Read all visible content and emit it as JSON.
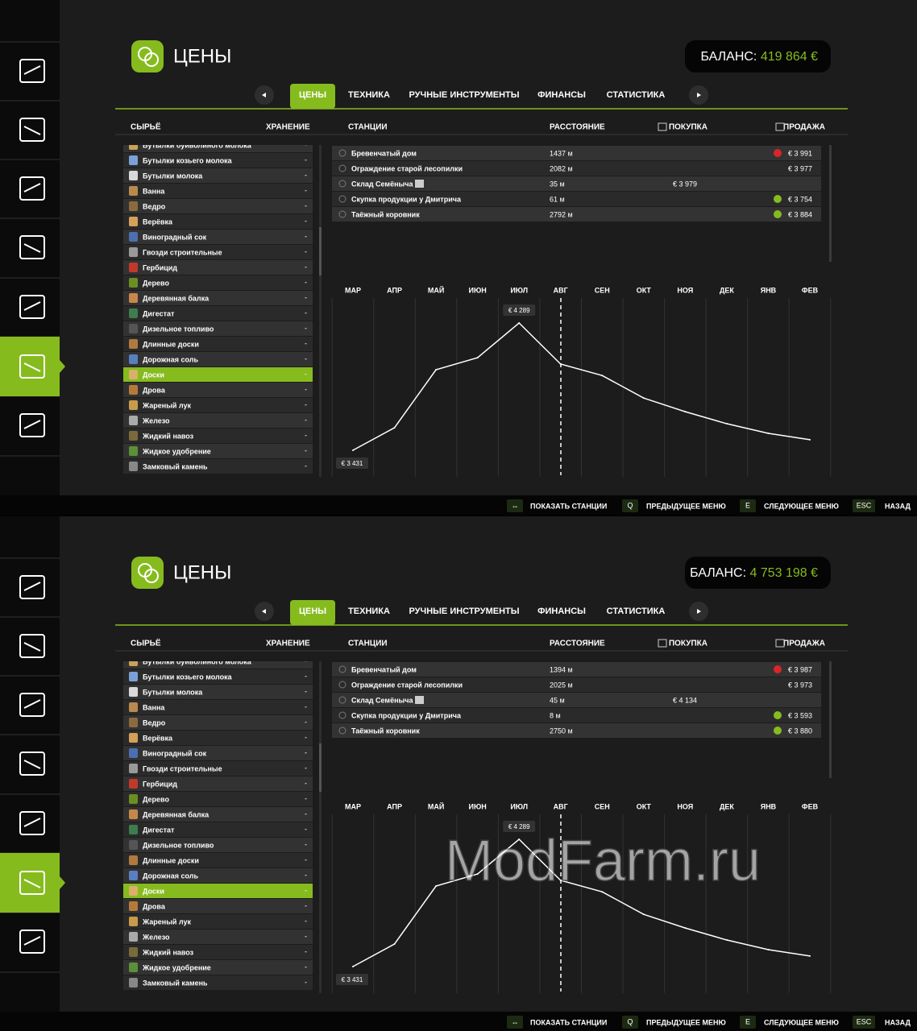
{
  "screens": [
    {
      "title": "ЦЕНЫ",
      "balance_label": "БАЛАНС:",
      "balance": "419 864 €",
      "tabs": [
        "ЦЕНЫ",
        "ТЕХНИКА",
        "РУЧНЫЕ ИНСТРУМЕНТЫ",
        "ФИНАНСЫ",
        "СТАТИСТИКА"
      ],
      "columns": {
        "goods": "СЫРЬЁ",
        "storage": "ХРАНЕНИЕ",
        "stations": "СТАНЦИИ",
        "distance": "РАССТОЯНИЕ",
        "buy": "ПОКУПКА",
        "sell": "ПРОДАЖА"
      },
      "items": [
        {
          "name": "Бутылки буйволиного молока",
          "storage": "-"
        },
        {
          "name": "Бутылки козьего молока",
          "storage": "-"
        },
        {
          "name": "Бутылки молока",
          "storage": "-"
        },
        {
          "name": "Ванна",
          "storage": "-"
        },
        {
          "name": "Ведро",
          "storage": "-"
        },
        {
          "name": "Верёвка",
          "storage": "-"
        },
        {
          "name": "Виноградный сок",
          "storage": "-"
        },
        {
          "name": "Гвозди строительные",
          "storage": "-"
        },
        {
          "name": "Гербицид",
          "storage": "-"
        },
        {
          "name": "Дерево",
          "storage": "-"
        },
        {
          "name": "Деревянная балка",
          "storage": "-"
        },
        {
          "name": "Дигестат",
          "storage": "-"
        },
        {
          "name": "Дизельное топливо",
          "storage": "-"
        },
        {
          "name": "Длинные доски",
          "storage": "-"
        },
        {
          "name": "Дорожная соль",
          "storage": "-"
        },
        {
          "name": "Доски",
          "storage": "-",
          "selected": true
        },
        {
          "name": "Дрова",
          "storage": "-"
        },
        {
          "name": "Жареный лук",
          "storage": "-"
        },
        {
          "name": "Железо",
          "storage": "-"
        },
        {
          "name": "Жидкий навоз",
          "storage": "-"
        },
        {
          "name": "Жидкое удобрение",
          "storage": "-"
        },
        {
          "name": "Замковый камень",
          "storage": "-"
        }
      ],
      "stations": [
        {
          "name": "Бревенчатый дом",
          "distance": "1437 м",
          "buy": null,
          "sell": "€ 3 991",
          "marker": "red"
        },
        {
          "name": "Ограждение старой лесопилки",
          "distance": "2082 м",
          "buy": null,
          "sell": "€ 3 977",
          "marker": null
        },
        {
          "name": "Склад Семёныча",
          "distance": "35 м",
          "buy": "€ 3 979",
          "sell": null,
          "marker": null
        },
        {
          "name": "Скупка продукции у Дмитрича",
          "distance": "61 м",
          "buy": null,
          "sell": "€ 3 754",
          "marker": "green"
        },
        {
          "name": "Таёжный коровник",
          "distance": "2792 м",
          "buy": null,
          "sell": "€ 3 884",
          "marker": "green"
        }
      ],
      "chart": {
        "type": "line",
        "color": "#ffffff",
        "categories": [
          "МАР",
          "АПР",
          "МАЙ",
          "ИЮН",
          "ИЮЛ",
          "АВГ",
          "СЕН",
          "ОКТ",
          "НОЯ",
          "ДЕК",
          "ЯНВ",
          "ФЕВ"
        ],
        "values": [
          3431,
          3583,
          3974,
          4055,
          4289,
          4012,
          3935,
          3783,
          3691,
          3610,
          3545,
          3502
        ],
        "value_labels": [
          "€ 3 431",
          null,
          null,
          null,
          "€ 4 289",
          null,
          null,
          null,
          null,
          null,
          null,
          null
        ]
      },
      "footer": [
        {
          "key": "↔",
          "label": "ПОКАЗАТЬ СТАНЦИИ"
        },
        {
          "key": "Q",
          "label": "ПРЕДЫДУЩЕЕ МЕНЮ"
        },
        {
          "key": "E",
          "label": "СЛЕДУЮЩЕЕ МЕНЮ"
        },
        {
          "key": "ESC",
          "label": "НАЗАД"
        }
      ]
    },
    {
      "title": "ЦЕНЫ",
      "balance_label": "БАЛАНС:",
      "balance": "4 753 198 €",
      "tabs": [
        "ЦЕНЫ",
        "ТЕХНИКА",
        "РУЧНЫЕ ИНСТРУМЕНТЫ",
        "ФИНАНСЫ",
        "СТАТИСТИКА"
      ],
      "columns": {
        "goods": "СЫРЬЁ",
        "storage": "ХРАНЕНИЕ",
        "stations": "СТАНЦИИ",
        "distance": "РАССТОЯНИЕ",
        "buy": "ПОКУПКА",
        "sell": "ПРОДАЖА"
      },
      "items": [
        {
          "name": "Бутылки буйволиного молока",
          "storage": "-"
        },
        {
          "name": "Бутылки козьего молока",
          "storage": "-"
        },
        {
          "name": "Бутылки молока",
          "storage": "-"
        },
        {
          "name": "Ванна",
          "storage": "-"
        },
        {
          "name": "Ведро",
          "storage": "-"
        },
        {
          "name": "Верёвка",
          "storage": "-"
        },
        {
          "name": "Виноградный сок",
          "storage": "-"
        },
        {
          "name": "Гвозди строительные",
          "storage": "-"
        },
        {
          "name": "Гербицид",
          "storage": "-"
        },
        {
          "name": "Дерево",
          "storage": "-"
        },
        {
          "name": "Деревянная балка",
          "storage": "-"
        },
        {
          "name": "Дигестат",
          "storage": "-"
        },
        {
          "name": "Дизельное топливо",
          "storage": "-"
        },
        {
          "name": "Длинные доски",
          "storage": "-"
        },
        {
          "name": "Дорожная соль",
          "storage": "-"
        },
        {
          "name": "Доски",
          "storage": "-",
          "selected": true
        },
        {
          "name": "Дрова",
          "storage": "-"
        },
        {
          "name": "Жареный лук",
          "storage": "-"
        },
        {
          "name": "Железо",
          "storage": "-"
        },
        {
          "name": "Жидкий навоз",
          "storage": "-"
        },
        {
          "name": "Жидкое удобрение",
          "storage": "-"
        },
        {
          "name": "Замковый камень",
          "storage": "-"
        }
      ],
      "stations": [
        {
          "name": "Бревенчатый дом",
          "distance": "1394 м",
          "buy": null,
          "sell": "€ 3 987",
          "marker": "red"
        },
        {
          "name": "Ограждение старой лесопилки",
          "distance": "2025 м",
          "buy": null,
          "sell": "€ 3 973",
          "marker": null
        },
        {
          "name": "Склад Семёныча",
          "distance": "45 м",
          "buy": "€ 4 134",
          "sell": null,
          "marker": null
        },
        {
          "name": "Скупка продукции у Дмитрича",
          "distance": "8 м",
          "buy": null,
          "sell": "€ 3 593",
          "marker": "green"
        },
        {
          "name": "Таёжный коровник",
          "distance": "2750 м",
          "buy": null,
          "sell": "€ 3 880",
          "marker": "green"
        }
      ],
      "chart": {
        "type": "line",
        "color": "#ffffff",
        "categories": [
          "МАР",
          "АПР",
          "МАЙ",
          "ИЮН",
          "ИЮЛ",
          "АВГ",
          "СЕН",
          "ОКТ",
          "НОЯ",
          "ДЕК",
          "ЯНВ",
          "ФЕВ"
        ],
        "values": [
          3431,
          3583,
          3974,
          4055,
          4289,
          4012,
          3935,
          3783,
          3691,
          3610,
          3545,
          3502
        ],
        "value_labels": [
          "€ 3 431",
          null,
          null,
          null,
          "€ 4 289",
          null,
          null,
          null,
          null,
          null,
          null,
          null
        ]
      },
      "footer": [
        {
          "key": "↔",
          "label": "ПОКАЗАТЬ СТАНЦИИ"
        },
        {
          "key": "Q",
          "label": "ПРЕДЫДУЩЕЕ МЕНЮ"
        },
        {
          "key": "E",
          "label": "СЛЕДУЮЩЕЕ МЕНЮ"
        },
        {
          "key": "ESC",
          "label": "НАЗАД"
        }
      ],
      "watermark": "ModFarm.ru"
    }
  ]
}
